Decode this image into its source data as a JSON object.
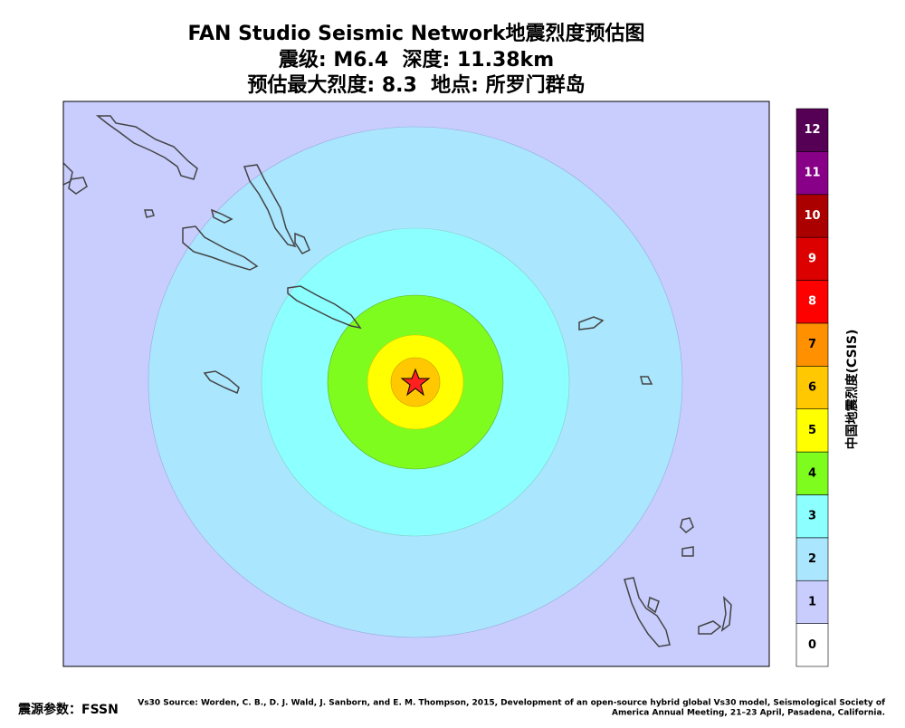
{
  "header": {
    "title": "FAN Studio Seismic Network地震烈度预估图",
    "line2": "震级: M6.4  深度: 11.38km",
    "line3": "预估最大烈度: 8.3  地点: 所罗门群岛"
  },
  "colorbar": {
    "label": "中国地震烈度(CSIS)",
    "levels": [
      {
        "label": "0",
        "color": "#ffffff"
      },
      {
        "label": "1",
        "color": "#c8cdfd"
      },
      {
        "label": "2",
        "color": "#aae6fd"
      },
      {
        "label": "3",
        "color": "#8cffff"
      },
      {
        "label": "4",
        "color": "#7efc1e"
      },
      {
        "label": "5",
        "color": "#ffff00"
      },
      {
        "label": "6",
        "color": "#ffc800"
      },
      {
        "label": "7",
        "color": "#ff9000"
      },
      {
        "label": "8",
        "color": "#ff0000"
      },
      {
        "label": "9",
        "color": "#dd0000"
      },
      {
        "label": "10",
        "color": "#aa0000"
      },
      {
        "label": "11",
        "color": "#880088"
      },
      {
        "label": "12",
        "color": "#550055"
      }
    ]
  },
  "footer": {
    "source": "震源参数：FSSN",
    "credit": [
      "Vs30 Source: Worden, C. B., D. J. Wald, J. Sanborn, and E. M. Thompson, 2015, Development of an open-source hybrid global Vs30 model, Seismological Society of",
      "America Annual Meeting, 21–23 April, Pasadena, California."
    ]
  }
}
